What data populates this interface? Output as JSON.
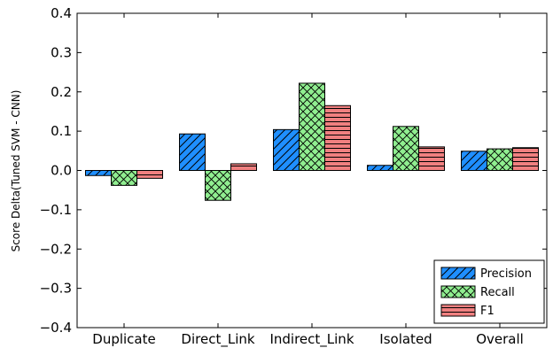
{
  "chart_data": {
    "type": "bar",
    "title": "",
    "xlabel": "",
    "ylabel": "Score Delta(Tuned SVM - CNN)",
    "ylim": [
      -0.4,
      0.4
    ],
    "yticks": [
      "−0.4",
      "−0.3",
      "−0.2",
      "−0.1",
      "0.0",
      "0.1",
      "0.2",
      "0.3",
      "0.4"
    ],
    "ytick_values": [
      -0.4,
      -0.3,
      -0.2,
      -0.1,
      0.0,
      0.1,
      0.2,
      0.3,
      0.4
    ],
    "categories": [
      "Duplicate",
      "Direct_Link",
      "Indirect_Link",
      "Isolated",
      "Overall"
    ],
    "series": [
      {
        "name": "Precision",
        "color": "#1f8fff",
        "hatch": "diagonal",
        "values": [
          -0.013,
          0.093,
          0.104,
          0.013,
          0.049
        ]
      },
      {
        "name": "Recall",
        "color": "#90ee90",
        "hatch": "cross",
        "values": [
          -0.038,
          -0.076,
          0.222,
          0.112,
          0.055
        ]
      },
      {
        "name": "F1",
        "color": "#f08080",
        "hatch": "horizontal",
        "values": [
          -0.02,
          0.017,
          0.165,
          0.06,
          0.058
        ]
      }
    ],
    "legend_position": "bottom-right",
    "grid": false
  }
}
